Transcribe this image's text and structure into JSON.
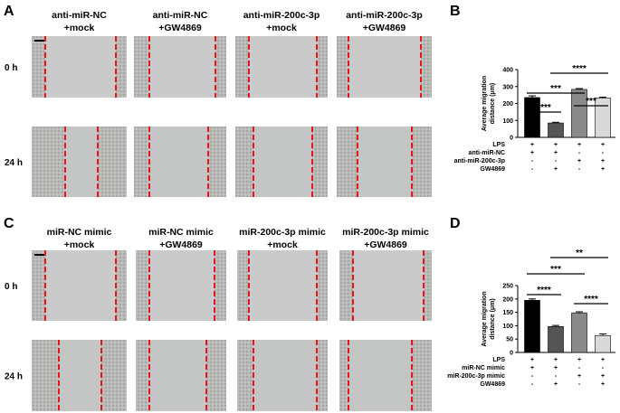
{
  "figure": {
    "panels": [
      {
        "label": "A",
        "columns": [
          [
            "anti-miR-NC",
            "+mock"
          ],
          [
            "anti-miR-NC",
            "+GW4869"
          ],
          [
            "anti-miR-200c-3p",
            "+mock"
          ],
          [
            "anti-miR-200c-3p",
            "+GW4869"
          ]
        ],
        "rows": [
          "0 h",
          "24 h"
        ]
      },
      {
        "label": "C",
        "columns": [
          [
            "miR-NC mimic",
            "+mock"
          ],
          [
            "miR-NC mimic",
            "+GW4869"
          ],
          [
            "miR-200c-3p mimic",
            "+mock"
          ],
          [
            "miR-200c-3p mimic",
            "+GW4869"
          ]
        ],
        "rows": [
          "0 h",
          "24 h"
        ]
      }
    ]
  },
  "chart_data": [
    {
      "type": "bar",
      "panel": "B",
      "ylabel": [
        "Average migration",
        "distance (μm)"
      ],
      "values": [
        235,
        85,
        283,
        232
      ],
      "errors": [
        10,
        4,
        5,
        5
      ],
      "colors": [
        "#000000",
        "#555555",
        "#8a8a8a",
        "#d9d9d9"
      ],
      "ylim": [
        0,
        400
      ],
      "yticks": [
        0,
        100,
        200,
        300,
        400
      ],
      "significance": [
        "****",
        "***",
        "****",
        "***"
      ],
      "conditions": [
        {
          "label": "LPS",
          "signs": [
            "+",
            "+",
            "+",
            "+"
          ]
        },
        {
          "label": "anti-miR-NC",
          "signs": [
            "+",
            "+",
            "-",
            "-"
          ]
        },
        {
          "label": "anti-miR-200c-3p",
          "signs": [
            "-",
            "-",
            "+",
            "+"
          ]
        },
        {
          "label": "GW4869",
          "signs": [
            "-",
            "+",
            "-",
            "+"
          ]
        }
      ]
    },
    {
      "type": "bar",
      "panel": "D",
      "ylabel": [
        "Average migration",
        "distance (μm)"
      ],
      "values": [
        195,
        97,
        148,
        63
      ],
      "errors": [
        5,
        4,
        4,
        6
      ],
      "colors": [
        "#000000",
        "#555555",
        "#8a8a8a",
        "#d9d9d9"
      ],
      "ylim": [
        0,
        250
      ],
      "yticks": [
        0,
        50,
        100,
        150,
        200,
        250
      ],
      "significance": [
        "****",
        "***",
        "**",
        "****"
      ],
      "conditions": [
        {
          "label": "LPS",
          "signs": [
            "+",
            "+",
            "+",
            "+"
          ]
        },
        {
          "label": "miR-NC mimic",
          "signs": [
            "+",
            "+",
            "-",
            "-"
          ]
        },
        {
          "label": "miR-200c-3p mimic",
          "signs": [
            "-",
            "-",
            "+",
            "+"
          ]
        },
        {
          "label": "GW4869",
          "signs": [
            "-",
            "+",
            "-",
            "+"
          ]
        }
      ]
    }
  ]
}
